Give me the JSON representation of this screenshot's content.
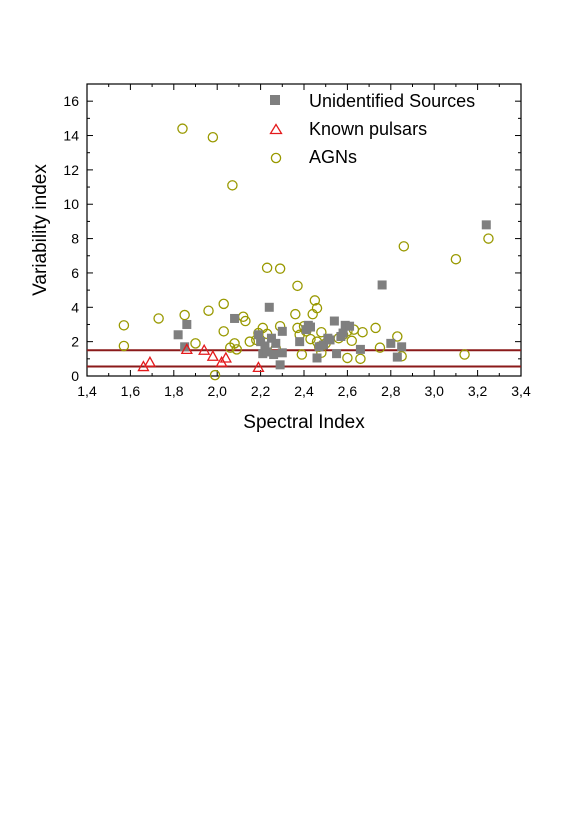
{
  "chart_data": {
    "type": "scatter",
    "xlabel": "Spectral Index",
    "ylabel": "Variability index",
    "xlim": [
      1.4,
      3.4
    ],
    "ylim": [
      0,
      17
    ],
    "x_tick_labels": [
      "1,4",
      "1,6",
      "1,8",
      "2,0",
      "2,2",
      "2,4",
      "2,6",
      "2,8",
      "3,0",
      "3,2",
      "3,4"
    ],
    "y_tick_labels": [
      "0",
      "2",
      "4",
      "6",
      "8",
      "10",
      "12",
      "14",
      "16"
    ],
    "legend_position": "top-right",
    "grid": false,
    "reference_lines": [
      {
        "y": 1.5,
        "color": "#8b1a1a"
      },
      {
        "y": 0.55,
        "color": "#8b1a1a"
      }
    ],
    "series": [
      {
        "name": "Unidentified Sources",
        "marker": "filled-square",
        "color": "#7f7f7f",
        "points": [
          [
            1.82,
            2.4
          ],
          [
            1.86,
            3.0
          ],
          [
            1.85,
            1.7
          ],
          [
            2.08,
            3.35
          ],
          [
            2.19,
            2.4
          ],
          [
            2.2,
            2.0
          ],
          [
            2.21,
            1.3
          ],
          [
            2.22,
            1.75
          ],
          [
            2.24,
            4.0
          ],
          [
            2.23,
            1.4
          ],
          [
            2.25,
            2.2
          ],
          [
            2.26,
            1.25
          ],
          [
            2.27,
            1.9
          ],
          [
            2.29,
            0.65
          ],
          [
            2.3,
            2.6
          ],
          [
            2.3,
            1.35
          ],
          [
            2.38,
            2.0
          ],
          [
            2.41,
            2.7
          ],
          [
            2.42,
            2.95
          ],
          [
            2.43,
            2.85
          ],
          [
            2.46,
            1.05
          ],
          [
            2.47,
            1.7
          ],
          [
            2.49,
            1.8
          ],
          [
            2.51,
            2.2
          ],
          [
            2.52,
            2.1
          ],
          [
            2.54,
            3.2
          ],
          [
            2.55,
            1.3
          ],
          [
            2.57,
            2.3
          ],
          [
            2.58,
            2.5
          ],
          [
            2.59,
            2.95
          ],
          [
            2.61,
            2.9
          ],
          [
            2.66,
            1.55
          ],
          [
            2.76,
            5.3
          ],
          [
            2.8,
            1.9
          ],
          [
            2.83,
            1.1
          ],
          [
            2.85,
            1.7
          ],
          [
            3.24,
            8.8
          ]
        ]
      },
      {
        "name": "Known pulsars",
        "marker": "open-triangle",
        "color": "#e41a1c",
        "points": [
          [
            1.66,
            0.55
          ],
          [
            1.69,
            0.8
          ],
          [
            1.86,
            1.55
          ],
          [
            1.94,
            1.5
          ],
          [
            1.98,
            1.15
          ],
          [
            2.02,
            0.8
          ],
          [
            2.04,
            1.05
          ],
          [
            2.19,
            0.5
          ]
        ]
      },
      {
        "name": "AGNs",
        "marker": "open-circle",
        "color": "#999900",
        "points": [
          [
            1.84,
            14.4
          ],
          [
            1.98,
            13.9
          ],
          [
            2.07,
            11.1
          ],
          [
            2.23,
            6.3
          ],
          [
            2.29,
            6.25
          ],
          [
            2.86,
            7.55
          ],
          [
            3.1,
            6.8
          ],
          [
            3.25,
            8.0
          ],
          [
            2.37,
            5.25
          ],
          [
            1.57,
            2.95
          ],
          [
            1.57,
            1.75
          ],
          [
            1.73,
            3.35
          ],
          [
            1.85,
            3.55
          ],
          [
            1.9,
            1.9
          ],
          [
            1.96,
            3.8
          ],
          [
            2.03,
            4.2
          ],
          [
            2.03,
            2.6
          ],
          [
            2.06,
            1.65
          ],
          [
            2.08,
            1.9
          ],
          [
            2.09,
            1.55
          ],
          [
            2.12,
            3.45
          ],
          [
            2.13,
            3.2
          ],
          [
            2.15,
            2.0
          ],
          [
            2.18,
            2.1
          ],
          [
            2.19,
            2.5
          ],
          [
            2.21,
            2.8
          ],
          [
            2.23,
            2.45
          ],
          [
            2.27,
            1.6
          ],
          [
            2.29,
            2.9
          ],
          [
            2.36,
            3.6
          ],
          [
            2.37,
            2.8
          ],
          [
            2.38,
            2.4
          ],
          [
            2.39,
            1.25
          ],
          [
            2.4,
            2.9
          ],
          [
            2.41,
            2.6
          ],
          [
            2.43,
            2.15
          ],
          [
            2.44,
            3.6
          ],
          [
            2.45,
            4.4
          ],
          [
            2.46,
            3.95
          ],
          [
            2.46,
            2.0
          ],
          [
            2.47,
            1.7
          ],
          [
            2.48,
            1.35
          ],
          [
            2.48,
            2.55
          ],
          [
            2.5,
            1.9
          ],
          [
            2.56,
            2.2
          ],
          [
            2.58,
            2.4
          ],
          [
            2.6,
            2.6
          ],
          [
            2.6,
            1.05
          ],
          [
            2.62,
            2.05
          ],
          [
            2.63,
            2.7
          ],
          [
            2.66,
            1.0
          ],
          [
            2.67,
            2.55
          ],
          [
            2.73,
            2.8
          ],
          [
            2.75,
            1.65
          ],
          [
            2.83,
            2.3
          ],
          [
            2.85,
            1.15
          ],
          [
            1.99,
            0.05
          ],
          [
            3.14,
            1.25
          ]
        ]
      }
    ]
  }
}
